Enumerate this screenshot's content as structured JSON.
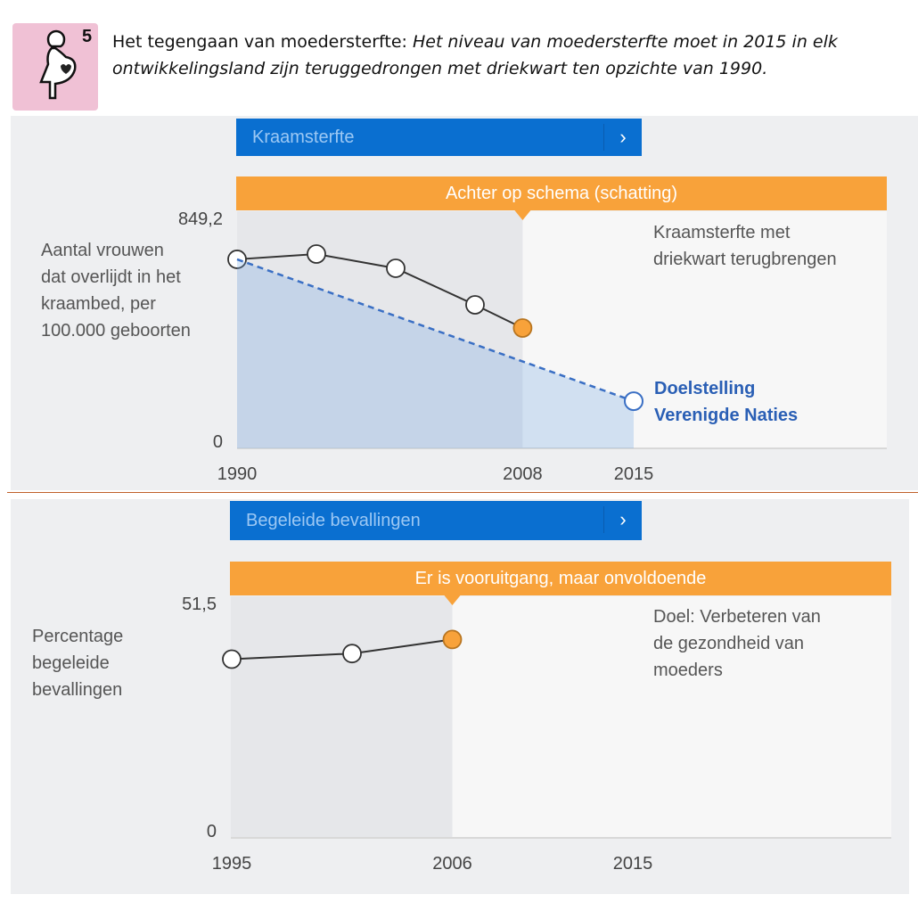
{
  "header": {
    "goal_number": "5",
    "icon": "pregnant-woman-icon",
    "title_plain": "Het tegengaan van moedersterfte: ",
    "title_italic_line1": "Het niveau van moedersterfte moet in 2015 in elk",
    "title_italic_line2": "ontwikkelingsland zijn teruggedrongen met driekwart ten opzichte van 1990."
  },
  "colors": {
    "blue_bar": "#0a6fd0",
    "orange_bar": "#f8a23a",
    "actual_line": "#333333",
    "target_line": "#3a6fc4",
    "latest_point": "#f8a23a",
    "divider": "#c0602a",
    "icon_bg": "#f0c1d5"
  },
  "panels": [
    {
      "dropdown_label": "Kraamsterfte",
      "dropdown_icon": "chevron-right-icon",
      "status": "Achter op schema (schatting)",
      "ylabel_lines": [
        "Aantal vrouwen",
        "dat overlijdt in het",
        "kraambed, per",
        "100.000 geboorten"
      ],
      "annotation_lines": [
        "Kraamsterfte met",
        "driekwart terugbrengen"
      ],
      "target_lines": [
        "Doelstelling",
        "Verenigde Naties"
      ]
    },
    {
      "dropdown_label": "Begeleide bevallingen",
      "dropdown_icon": "chevron-right-icon",
      "status": "Er is vooruitgang, maar onvoldoende",
      "ylabel_lines": [
        "Percentage",
        "begeleide",
        "bevallingen"
      ],
      "annotation_lines": [
        "Doel: Verbeteren van",
        "de gezondheid van",
        "moeders"
      ]
    }
  ],
  "chart_data": [
    {
      "type": "line",
      "ylim": [
        0,
        849.2
      ],
      "xlim": [
        1990,
        2015
      ],
      "ytick_labels": [
        "849,2",
        "0"
      ],
      "xtick_labels": [
        "1990",
        "2008",
        "2015"
      ],
      "xticks": [
        1990,
        2008,
        2015
      ],
      "series": [
        {
          "style": "solid",
          "x": [
            1990,
            1995,
            2000,
            2005,
            2008
          ],
          "y": [
            677,
            696,
            645,
            514,
            431
          ],
          "highlight_last": true
        },
        {
          "name": "Doelstelling Verenigde Naties",
          "style": "dashed",
          "x": [
            1990,
            2015
          ],
          "y": [
            677,
            169
          ],
          "area_fill": true
        }
      ],
      "observed_until": 2008,
      "grid": false
    },
    {
      "type": "line",
      "ylim": [
        0,
        51.5
      ],
      "xlim": [
        1995,
        2015
      ],
      "ytick_labels": [
        "51,5",
        "0"
      ],
      "xtick_labels": [
        "1995",
        "2006",
        "2015"
      ],
      "xticks": [
        1995,
        2006,
        2015
      ],
      "series": [
        {
          "style": "solid",
          "x": [
            1995,
            2001,
            2006
          ],
          "y": [
            38.1,
            39.3,
            42.3
          ],
          "highlight_last": true
        }
      ],
      "observed_until": 2006,
      "grid": false
    }
  ]
}
